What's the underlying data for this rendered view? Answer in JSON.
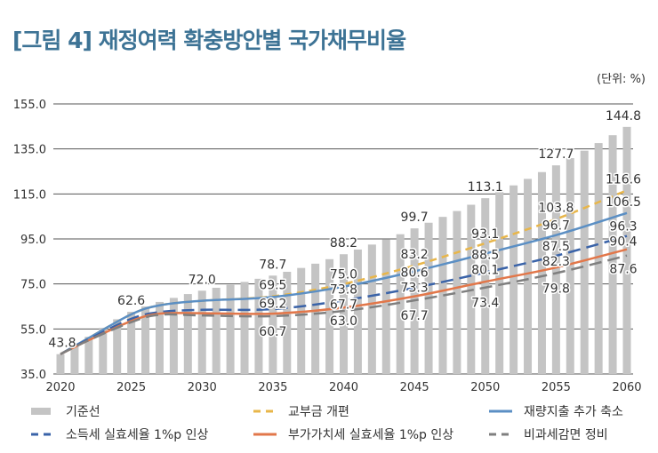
{
  "chart_data": {
    "type": "bar+line",
    "title": "[그림 4] 재정여력 확충방안별 국가채무비율",
    "unit": "(단위: %)",
    "ylim": [
      35,
      155
    ],
    "yticks": [
      "35.0",
      "55.0",
      "75.0",
      "95.0",
      "115.0",
      "135.0",
      "155.0"
    ],
    "xticks": [
      "2020",
      "2025",
      "2030",
      "2035",
      "2040",
      "2045",
      "2050",
      "2055",
      "2060"
    ],
    "grid": true,
    "legend_position": "bottom",
    "bars": {
      "name": "기준선",
      "color": "#c4c4c4",
      "x": [
        2020,
        2021,
        2022,
        2023,
        2024,
        2025,
        2026,
        2027,
        2028,
        2029,
        2030,
        2031,
        2032,
        2033,
        2034,
        2035,
        2036,
        2037,
        2038,
        2039,
        2040,
        2041,
        2042,
        2043,
        2044,
        2045,
        2046,
        2047,
        2048,
        2049,
        2050,
        2051,
        2052,
        2053,
        2054,
        2055,
        2056,
        2057,
        2058,
        2059,
        2060
      ],
      "values": [
        43.8,
        47.5,
        51.5,
        55.5,
        59.3,
        62.6,
        65.0,
        67.0,
        68.8,
        70.5,
        72.0,
        73.3,
        74.6,
        75.9,
        77.3,
        78.7,
        80.4,
        82.1,
        84.0,
        86.0,
        88.2,
        90.3,
        92.5,
        94.7,
        97.1,
        99.7,
        102.2,
        104.8,
        107.4,
        110.2,
        113.1,
        115.9,
        118.8,
        121.7,
        124.7,
        127.7,
        130.9,
        134.2,
        137.6,
        141.1,
        144.8
      ],
      "labels": [
        {
          "x": 2020,
          "text": "43.8"
        },
        {
          "x": 2025,
          "text": "62.6"
        },
        {
          "x": 2030,
          "text": "72.0"
        },
        {
          "x": 2035,
          "text": "78.7"
        },
        {
          "x": 2040,
          "text": "88.2"
        },
        {
          "x": 2045,
          "text": "99.7"
        },
        {
          "x": 2050,
          "text": "113.1"
        },
        {
          "x": 2055,
          "text": "127.7"
        },
        {
          "x": 2060,
          "text": "144.8"
        }
      ]
    },
    "series": [
      {
        "name": "교부금 개편",
        "color": "#e8b64a",
        "dash": "dashed",
        "x": [
          2020,
          2022,
          2025,
          2027,
          2030,
          2035,
          2040,
          2045,
          2050,
          2055,
          2060
        ],
        "values": [
          43.8,
          51,
          61.5,
          65.5,
          67.5,
          69.5,
          75.0,
          83.2,
          93.1,
          103.8,
          116.6
        ],
        "labels": [
          {
            "x": 2035,
            "text": "69.5",
            "dy": -8
          },
          {
            "x": 2040,
            "text": "75.0",
            "dy": -6
          },
          {
            "x": 2045,
            "text": "83.2",
            "dy": -8
          },
          {
            "x": 2050,
            "text": "93.1",
            "dy": -6
          },
          {
            "x": 2055,
            "text": "103.8",
            "dy": -8
          },
          {
            "x": 2060,
            "text": "116.6",
            "dy": -8
          }
        ]
      },
      {
        "name": "재량지출 추가 축소",
        "color": "#5b8fc4",
        "dash": "solid",
        "x": [
          2020,
          2022,
          2025,
          2027,
          2030,
          2035,
          2040,
          2045,
          2050,
          2055,
          2060
        ],
        "values": [
          43.8,
          51,
          61.5,
          65.5,
          67.5,
          69.2,
          73.8,
          80.6,
          88.5,
          96.7,
          106.5
        ],
        "labels": [
          {
            "x": 2035,
            "text": "69.2",
            "dy": 12
          },
          {
            "x": 2040,
            "text": "73.8",
            "dy": 6
          },
          {
            "x": 2045,
            "text": "80.6",
            "dy": 6
          },
          {
            "x": 2050,
            "text": "88.5",
            "dy": 6
          },
          {
            "x": 2055,
            "text": "96.7",
            "dy": -6
          },
          {
            "x": 2060,
            "text": "106.5",
            "dy": -8
          }
        ]
      },
      {
        "name": "소득세 실효세율 1%p 인상",
        "color": "#3a63a8",
        "dash": "longdash",
        "x": [
          2020,
          2022,
          2025,
          2027,
          2030,
          2035,
          2040,
          2045,
          2050,
          2055,
          2060
        ],
        "values": [
          43.8,
          50.5,
          59.5,
          62.5,
          63.5,
          63.8,
          67.7,
          73.3,
          80.1,
          87.5,
          96.3
        ],
        "labels": [
          {
            "x": 2040,
            "text": "67.7",
            "dy": 6
          },
          {
            "x": 2045,
            "text": "73.3",
            "dy": 4
          },
          {
            "x": 2050,
            "text": "80.1",
            "dy": -6
          },
          {
            "x": 2055,
            "text": "87.5",
            "dy": -6
          },
          {
            "x": 2060,
            "text": "96.3",
            "dy": -6
          }
        ]
      },
      {
        "name": "부가가치세 실효세율 1%p 인상",
        "color": "#e2774a",
        "dash": "solid",
        "x": [
          2020,
          2022,
          2025,
          2027,
          2030,
          2035,
          2040,
          2045,
          2050,
          2055,
          2060
        ],
        "values": [
          43.8,
          50,
          58.5,
          61.8,
          62,
          61.8,
          64.5,
          69.5,
          76.0,
          82.3,
          90.4
        ],
        "labels": [
          {
            "x": 2055,
            "text": "82.3",
            "dy": -6
          },
          {
            "x": 2060,
            "text": "90.4",
            "dy": -6
          }
        ]
      },
      {
        "name": "비과세감면 정비",
        "color": "#7f7f7f",
        "dash": "longdash",
        "x": [
          2020,
          2022,
          2025,
          2027,
          2030,
          2035,
          2040,
          2045,
          2050,
          2055,
          2060
        ],
        "values": [
          43.8,
          50,
          58,
          61.3,
          61,
          60.7,
          63.0,
          67.7,
          73.4,
          79.8,
          87.6
        ],
        "labels": [
          {
            "x": 2035,
            "text": "60.7",
            "dy": 22
          },
          {
            "x": 2040,
            "text": "63.0",
            "dy": 16
          },
          {
            "x": 2045,
            "text": "67.7",
            "dy": 22
          },
          {
            "x": 2050,
            "text": "73.4",
            "dy": 22
          },
          {
            "x": 2055,
            "text": "79.8",
            "dy": 22
          },
          {
            "x": 2060,
            "text": "87.6",
            "dy": 20
          }
        ]
      }
    ]
  }
}
